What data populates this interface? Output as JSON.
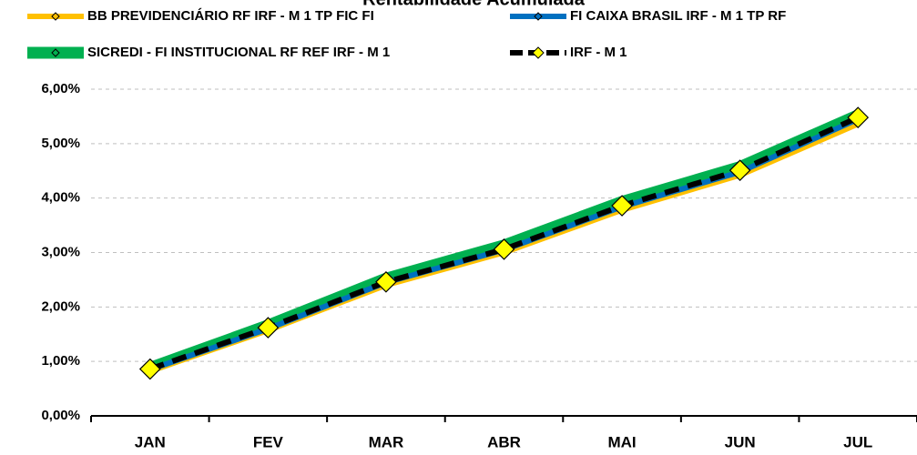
{
  "chart_data": {
    "type": "line",
    "title": "Rentabilidade Acumulada",
    "categories": [
      "JAN",
      "FEV",
      "MAR",
      "ABR",
      "MAI",
      "JUN",
      "JUL"
    ],
    "series": [
      {
        "name": "BB PREVIDENCIÁRIO RF IRF - M 1 TP FIC FI",
        "color": "#FFC000",
        "values": [
          0.82,
          1.57,
          2.4,
          3.0,
          3.78,
          4.42,
          5.36
        ]
      },
      {
        "name": "FI CAIXA BRASIL IRF - M 1 TP RF",
        "color": "#0070C0",
        "values": [
          0.85,
          1.6,
          2.45,
          3.05,
          3.84,
          4.48,
          5.45
        ]
      },
      {
        "name": "SICREDI - FI INSTITUCIONAL RF REF IRF - M 1",
        "color": "#00B050",
        "values": [
          0.88,
          1.66,
          2.52,
          3.13,
          3.93,
          4.57,
          5.52
        ]
      },
      {
        "name": "IRF - M 1",
        "color": "#000000",
        "values": [
          0.86,
          1.62,
          2.46,
          3.06,
          3.86,
          4.51,
          5.48
        ]
      }
    ],
    "ylim": [
      0,
      6
    ],
    "yticks": [
      {
        "value": 0,
        "label": "0,00%"
      },
      {
        "value": 1,
        "label": "1,00%"
      },
      {
        "value": 2,
        "label": "2,00%"
      },
      {
        "value": 3,
        "label": "3,00%"
      },
      {
        "value": 4,
        "label": "4,00%"
      },
      {
        "value": 5,
        "label": "5,00%"
      },
      {
        "value": 6,
        "label": "6,00%"
      }
    ],
    "grid": true
  }
}
